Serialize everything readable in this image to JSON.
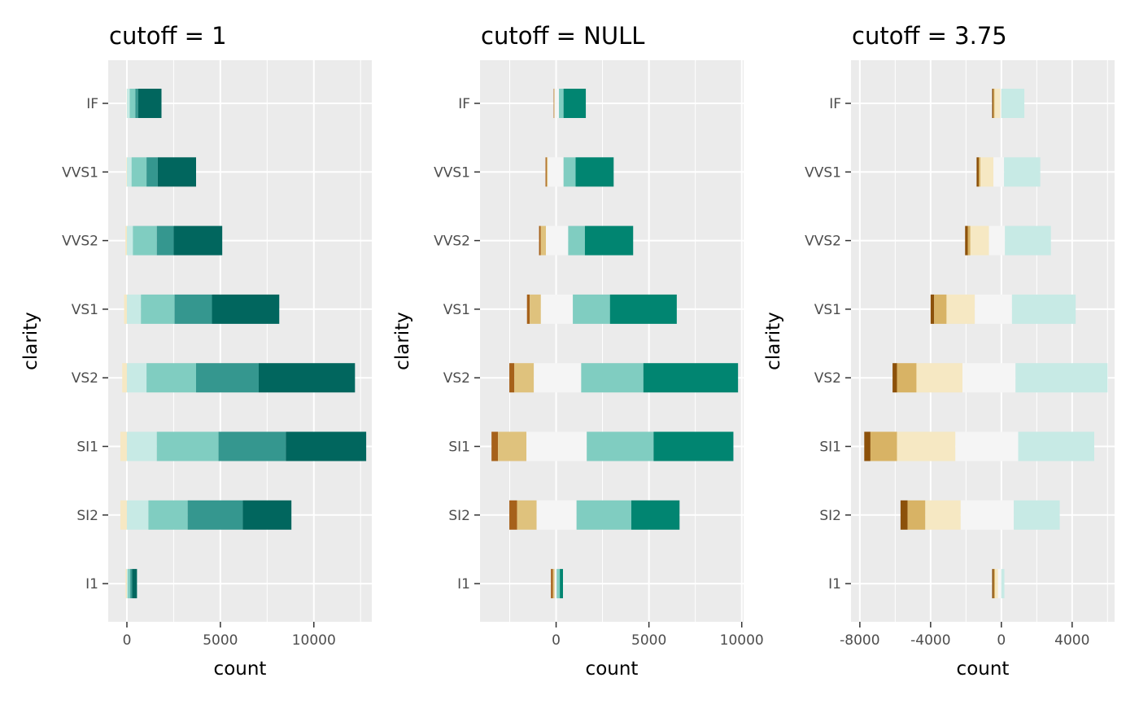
{
  "palette": {
    "panel_bg": "#EBEBEB",
    "grid": "#FFFFFF",
    "tick": "#333333",
    "neg": [
      "#8C510A",
      "#BF812D",
      "#DFC27D",
      "#F6E8C3"
    ],
    "mid": "#F5F5F5",
    "pos": [
      "#C7EAE5",
      "#80CDC1",
      "#35978F",
      "#01665E"
    ]
  },
  "chart_data": [
    {
      "type": "bar",
      "orientation": "horizontal",
      "stacked": "diverging",
      "title": "cutoff = 1",
      "xlabel": "count",
      "ylabel": "clarity",
      "xlim": [
        -1000,
        13100
      ],
      "xticks": [
        0,
        5000,
        10000
      ],
      "xtick_labels": [
        "0",
        "5000",
        "10000"
      ],
      "categories": [
        "I1",
        "SI2",
        "SI1",
        "VS2",
        "VS1",
        "VVS2",
        "VVS1",
        "IF"
      ],
      "segment_colors": [
        "#F6E8C3",
        "#C7EAE5",
        "#80CDC1",
        "#35978F",
        "#01665E"
      ],
      "segments": [
        [
          [
            -70,
            0
          ],
          [
            0,
            50
          ],
          [
            50,
            180
          ],
          [
            180,
            280
          ],
          [
            280,
            540
          ]
        ],
        [
          [
            -350,
            0
          ],
          [
            0,
            1150
          ],
          [
            1150,
            3250
          ],
          [
            3250,
            6200
          ],
          [
            6200,
            8800
          ]
        ],
        [
          [
            -350,
            0
          ],
          [
            0,
            1600
          ],
          [
            1600,
            4900
          ],
          [
            4900,
            8500
          ],
          [
            8500,
            12800
          ]
        ],
        [
          [
            -250,
            0
          ],
          [
            0,
            1050
          ],
          [
            1050,
            3700
          ],
          [
            3700,
            7050
          ],
          [
            7050,
            12200
          ]
        ],
        [
          [
            -150,
            0
          ],
          [
            0,
            750
          ],
          [
            750,
            2550
          ],
          [
            2550,
            4550
          ],
          [
            4550,
            8150
          ]
        ],
        [
          [
            -80,
            0
          ],
          [
            0,
            320
          ],
          [
            320,
            1600
          ],
          [
            1600,
            2500
          ],
          [
            2500,
            5100
          ]
        ],
        [
          [
            -30,
            0
          ],
          [
            0,
            250
          ],
          [
            250,
            1050
          ],
          [
            1050,
            1650
          ],
          [
            1650,
            3700
          ]
        ],
        [
          [
            -10,
            0
          ],
          [
            0,
            150
          ],
          [
            150,
            450
          ],
          [
            450,
            600
          ],
          [
            600,
            1850
          ]
        ]
      ]
    },
    {
      "type": "bar",
      "orientation": "horizontal",
      "stacked": "diverging",
      "title": "cutoff = NULL",
      "xlabel": "count",
      "ylabel": "clarity",
      "xlim": [
        -4100,
        10100
      ],
      "xticks": [
        0,
        5000,
        10000
      ],
      "xtick_labels": [
        "0",
        "5000",
        "10000"
      ],
      "categories": [
        "I1",
        "SI2",
        "SI1",
        "VS2",
        "VS1",
        "VVS2",
        "VVS1",
        "IF"
      ],
      "segment_colors": [
        "#A6611A",
        "#DFC27D",
        "#F5F5F5",
        "#80CDC1",
        "#018571"
      ],
      "segments": [
        [
          [
            -280,
            -170
          ],
          [
            -170,
            -80
          ],
          [
            -80,
            30
          ],
          [
            30,
            200
          ],
          [
            200,
            370
          ]
        ],
        [
          [
            -2520,
            -2100
          ],
          [
            -2100,
            -1050
          ],
          [
            -1050,
            1100
          ],
          [
            1100,
            4050
          ],
          [
            4050,
            6650
          ]
        ],
        [
          [
            -3480,
            -3130
          ],
          [
            -3130,
            -1600
          ],
          [
            -1600,
            1650
          ],
          [
            1650,
            5250
          ],
          [
            5250,
            9550
          ]
        ],
        [
          [
            -2520,
            -2250
          ],
          [
            -2250,
            -1200
          ],
          [
            -1200,
            1350
          ],
          [
            1350,
            4700
          ],
          [
            4700,
            9800
          ]
        ],
        [
          [
            -1570,
            -1420
          ],
          [
            -1420,
            -820
          ],
          [
            -820,
            900
          ],
          [
            900,
            2900
          ],
          [
            2900,
            6500
          ]
        ],
        [
          [
            -920,
            -830
          ],
          [
            -830,
            -550
          ],
          [
            -550,
            650
          ],
          [
            650,
            1550
          ],
          [
            1550,
            4150
          ]
        ],
        [
          [
            -570,
            -510
          ],
          [
            -510,
            -450
          ],
          [
            -450,
            400
          ],
          [
            400,
            1050
          ],
          [
            1050,
            3100
          ]
        ],
        [
          [
            -130,
            -105
          ],
          [
            -105,
            -75
          ],
          [
            -75,
            150
          ],
          [
            150,
            400
          ],
          [
            400,
            1600
          ]
        ]
      ]
    },
    {
      "type": "bar",
      "orientation": "horizontal",
      "stacked": "diverging",
      "title": "cutoff = 3.75",
      "xlabel": "count",
      "ylabel": "clarity",
      "xlim": [
        -8500,
        6400
      ],
      "xticks": [
        -8000,
        -4000,
        0,
        4000
      ],
      "xtick_labels": [
        "-8000",
        "-4000",
        "0",
        "4000"
      ],
      "categories": [
        "I1",
        "SI2",
        "SI1",
        "VS2",
        "VS1",
        "VVS2",
        "VVS1",
        "IF"
      ],
      "segment_colors": [
        "#8C510A",
        "#D8B365",
        "#F6E8C3",
        "#F5F5F5",
        "#C7EAE5"
      ],
      "segments": [
        [
          [
            -520,
            -420
          ],
          [
            -420,
            -360
          ],
          [
            -360,
            -190
          ],
          [
            -190,
            0
          ],
          [
            0,
            170
          ]
        ],
        [
          [
            -5700,
            -5300
          ],
          [
            -5300,
            -4300
          ],
          [
            -4300,
            -2300
          ],
          [
            -2300,
            700
          ],
          [
            700,
            3300
          ]
        ],
        [
          [
            -7750,
            -7400
          ],
          [
            -7400,
            -5900
          ],
          [
            -5900,
            -2600
          ],
          [
            -2600,
            950
          ],
          [
            950,
            5250
          ]
        ],
        [
          [
            -6150,
            -5900
          ],
          [
            -5900,
            -4800
          ],
          [
            -4800,
            -2200
          ],
          [
            -2200,
            800
          ],
          [
            800,
            6000
          ]
        ],
        [
          [
            -4000,
            -3800
          ],
          [
            -3800,
            -3100
          ],
          [
            -3100,
            -1500
          ],
          [
            -1500,
            600
          ],
          [
            600,
            4200
          ]
        ],
        [
          [
            -2050,
            -1900
          ],
          [
            -1900,
            -1750
          ],
          [
            -1750,
            -700
          ],
          [
            -700,
            200
          ],
          [
            200,
            2800
          ]
        ],
        [
          [
            -1400,
            -1280
          ],
          [
            -1280,
            -1180
          ],
          [
            -1180,
            -450
          ],
          [
            -450,
            150
          ],
          [
            150,
            2200
          ]
        ],
        [
          [
            -520,
            -450
          ],
          [
            -450,
            -380
          ],
          [
            -380,
            -60
          ],
          [
            -60,
            0
          ],
          [
            0,
            1300
          ]
        ]
      ]
    }
  ]
}
